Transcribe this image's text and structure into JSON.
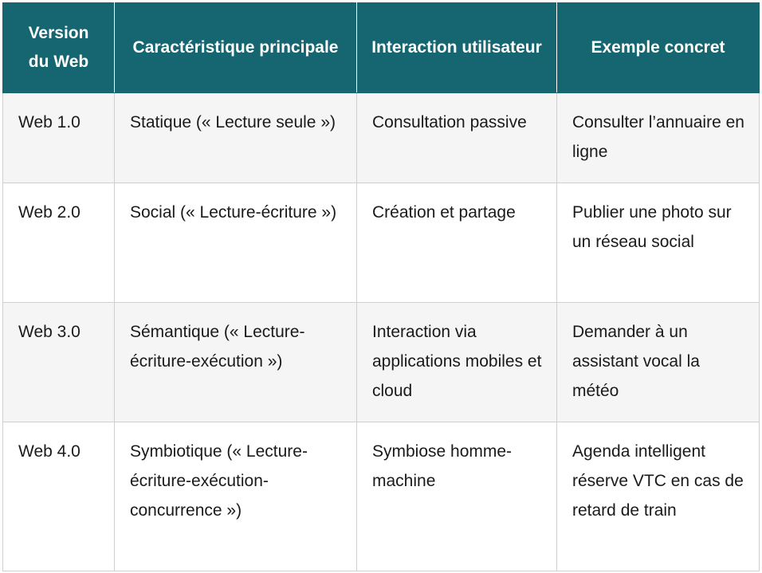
{
  "table": {
    "header": [
      "Version du Web",
      "Caractéristique principale",
      "Interaction utilisateur",
      "Exemple concret"
    ],
    "rows": [
      [
        "Web 1.0",
        "Statique (« Lecture seule »)",
        "Consultation passive",
        "Consulter l’annuaire en ligne"
      ],
      [
        "Web 2.0",
        "Social (« Lecture-écriture »)",
        "Création et partage",
        "Publier une photo sur un réseau social"
      ],
      [
        "Web 3.0",
        "Sémantique (« Lecture-écriture-exécution »)",
        "Interaction via applications mobiles et cloud",
        "Demander à un assistant vocal la météo"
      ],
      [
        "Web 4.0",
        "Symbiotique (« Lecture-écriture-exécution-concurrence »)",
        "Symbiose homme-machine",
        "Agenda intelligent réserve VTC en cas de retard de train"
      ]
    ]
  }
}
